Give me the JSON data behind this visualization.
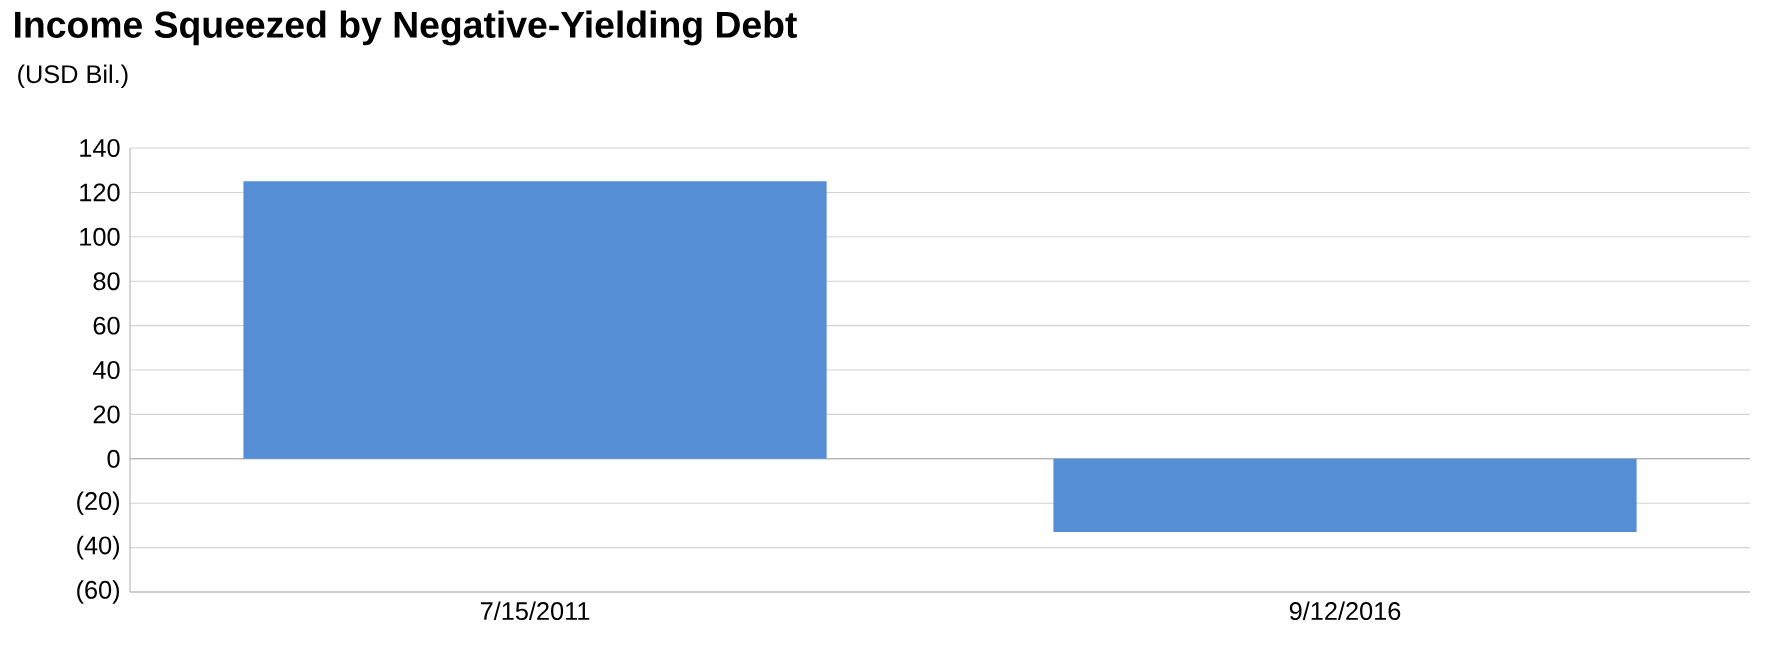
{
  "chart_data": {
    "type": "bar",
    "title": "Income Squeezed by Negative-Yielding Debt",
    "annotations": [
      "(USD Bil.)"
    ],
    "categories": [
      "7/15/2011",
      "9/12/2016"
    ],
    "values": [
      125,
      -33
    ],
    "color": "#558ed5",
    "ylim": [
      -60,
      140
    ],
    "yticks": [
      {
        "value": -60,
        "label": "(60)"
      },
      {
        "value": -40,
        "label": "(40)"
      },
      {
        "value": -20,
        "label": "(20)"
      },
      0,
      20,
      40,
      60,
      80,
      100,
      120,
      140
    ],
    "grid": "y"
  }
}
